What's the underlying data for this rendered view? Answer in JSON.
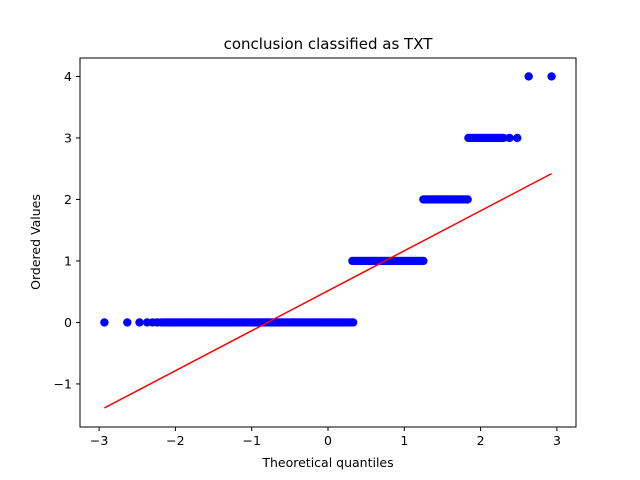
{
  "chart_data": {
    "type": "scatter",
    "title": "conclusion classified as TXT",
    "xlabel": "Theoretical quantiles",
    "ylabel": "Ordered Values",
    "xlim": [
      -3.25,
      3.25
    ],
    "ylim": [
      -1.7,
      4.3
    ],
    "xticks": [
      -3,
      -2,
      -1,
      0,
      1,
      2,
      3
    ],
    "xtick_labels": [
      "−3",
      "−2",
      "−1",
      "0",
      "1",
      "2",
      "3"
    ],
    "yticks": [
      -1,
      0,
      1,
      2,
      3,
      4
    ],
    "ytick_labels": [
      "−1",
      "0",
      "1",
      "2",
      "3",
      "4"
    ],
    "grid": false,
    "legend": "none",
    "point_color": "#0000ff",
    "line_color": "#ff0000",
    "groups": [
      {
        "y": 0,
        "x_dense_range": [
          -2.15,
          0.33
        ],
        "x_sparse": [
          -2.93,
          -2.63,
          -2.47,
          -2.37,
          -2.3,
          -2.24,
          -2.19
        ]
      },
      {
        "y": 1,
        "x_dense_range": [
          0.32,
          1.25
        ],
        "x_sparse": []
      },
      {
        "y": 2,
        "x_dense_range": [
          1.25,
          1.83
        ],
        "x_sparse": []
      },
      {
        "y": 3,
        "x_dense_range": [
          1.84,
          2.3
        ],
        "x_sparse": [
          2.38,
          2.48
        ]
      },
      {
        "y": 4,
        "x_dense_range": null,
        "x_sparse": [
          2.63,
          2.93
        ]
      }
    ],
    "fit_line": {
      "x": [
        -2.93,
        2.93
      ],
      "y": [
        -1.39,
        2.42
      ]
    }
  }
}
